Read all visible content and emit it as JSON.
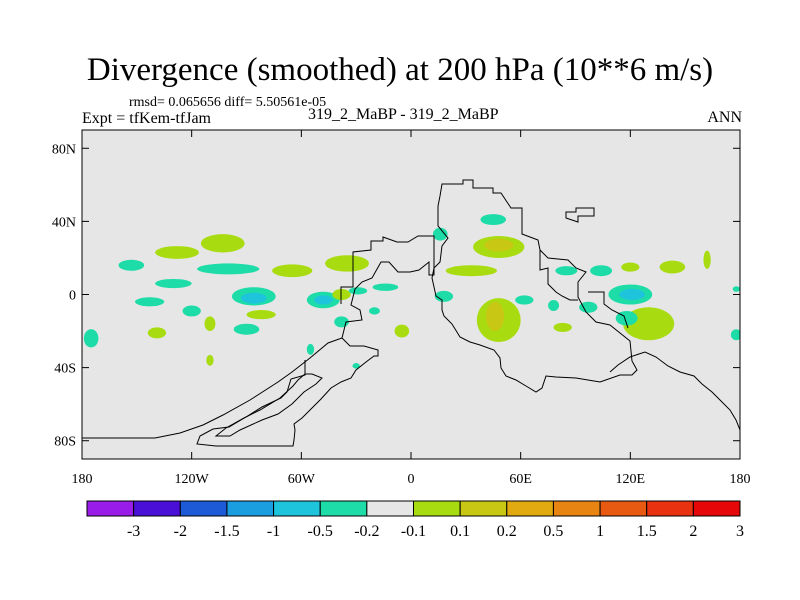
{
  "header": {
    "title": "Divergence (smoothed) at 200 hPa (10**6 m/s)",
    "stats": "rmsd= 0.065656 diff= 5.50561e-05",
    "experiment": "Expt = tfKem-tfJam",
    "cases": "319_2_MaBP - 319_2_MaBP",
    "season": "ANN"
  },
  "chart_data": {
    "type": "heatmap",
    "title": "Divergence (smoothed) at 200 hPa (10**6 m/s)",
    "xlim": [
      -180,
      180
    ],
    "ylim": [
      -90,
      90
    ],
    "x_ticks": [
      {
        "value": -180,
        "label": "180"
      },
      {
        "value": -120,
        "label": "120W"
      },
      {
        "value": -60,
        "label": "60W"
      },
      {
        "value": 0,
        "label": "0"
      },
      {
        "value": 60,
        "label": "60E"
      },
      {
        "value": 120,
        "label": "120E"
      },
      {
        "value": 180,
        "label": "180"
      }
    ],
    "y_ticks": [
      {
        "value": 80,
        "label": "80N"
      },
      {
        "value": 40,
        "label": "40N"
      },
      {
        "value": 0,
        "label": "0"
      },
      {
        "value": -40,
        "label": "40S"
      },
      {
        "value": -80,
        "label": "80S"
      }
    ],
    "colorbar": {
      "labels": [
        "-3",
        "-2",
        "-1.5",
        "-1",
        "-0.5",
        "-0.2",
        "-0.1",
        "0.1",
        "0.2",
        "0.5",
        "1",
        "1.5",
        "2",
        "3"
      ],
      "colors": [
        "#9a1ce8",
        "#4a10d8",
        "#1c5ad8",
        "#1a9ee0",
        "#1ec4dc",
        "#1edca8",
        "#e6e6e6",
        "#a8dc10",
        "#c8c814",
        "#e0aa10",
        "#e88412",
        "#e85a12",
        "#e83210",
        "#e60808"
      ]
    },
    "background_color": "#e6e6e6",
    "grid": false,
    "anomaly_regions": [
      {
        "lon": -143,
        "lat": -4,
        "rx": 8,
        "ry": 2.5,
        "color": "#1edca8"
      },
      {
        "lon": -153,
        "lat": 16,
        "rx": 7,
        "ry": 3,
        "color": "#1edca8"
      },
      {
        "lon": -128,
        "lat": 23,
        "rx": 12,
        "ry": 3.5,
        "color": "#a8dc10"
      },
      {
        "lon": -103,
        "lat": 28,
        "rx": 12,
        "ry": 5,
        "color": "#a8dc10"
      },
      {
        "lon": -100,
        "lat": 14,
        "rx": 17,
        "ry": 3,
        "color": "#1edca8"
      },
      {
        "lon": -65,
        "lat": 13,
        "rx": 11,
        "ry": 3.5,
        "color": "#a8dc10"
      },
      {
        "lon": -130,
        "lat": 6,
        "rx": 10,
        "ry": 2.5,
        "color": "#1edca8"
      },
      {
        "lon": -86,
        "lat": -1,
        "rx": 12,
        "ry": 5,
        "color": "#1edca8"
      },
      {
        "lon": -86,
        "lat": -2,
        "rx": 7,
        "ry": 3,
        "color": "#1ec4dc"
      },
      {
        "lon": -48,
        "lat": -3,
        "rx": 9,
        "ry": 4.5,
        "color": "#1edca8"
      },
      {
        "lon": -48,
        "lat": -3,
        "rx": 5,
        "ry": 2.5,
        "color": "#1ec4dc"
      },
      {
        "lon": -120,
        "lat": -9,
        "rx": 5,
        "ry": 3,
        "color": "#1edca8"
      },
      {
        "lon": -82,
        "lat": -11,
        "rx": 8,
        "ry": 2.5,
        "color": "#a8dc10"
      },
      {
        "lon": -110,
        "lat": -16,
        "rx": 3,
        "ry": 4,
        "color": "#a8dc10"
      },
      {
        "lon": -90,
        "lat": -19,
        "rx": 7,
        "ry": 3,
        "color": "#1edca8"
      },
      {
        "lon": -139,
        "lat": -21,
        "rx": 5,
        "ry": 3,
        "color": "#a8dc10"
      },
      {
        "lon": -175,
        "lat": -24,
        "rx": 4,
        "ry": 5,
        "color": "#1edca8"
      },
      {
        "lon": -110,
        "lat": -36,
        "rx": 2,
        "ry": 3,
        "color": "#a8dc10"
      },
      {
        "lon": -55,
        "lat": -30,
        "rx": 2,
        "ry": 3,
        "color": "#1edca8"
      },
      {
        "lon": -38,
        "lat": -15,
        "rx": 4,
        "ry": 3,
        "color": "#1edca8"
      },
      {
        "lon": -20,
        "lat": -9,
        "rx": 3,
        "ry": 2,
        "color": "#1edca8"
      },
      {
        "lon": -5,
        "lat": -20,
        "rx": 4,
        "ry": 3.5,
        "color": "#a8dc10"
      },
      {
        "lon": -35,
        "lat": 17,
        "rx": 12,
        "ry": 4.5,
        "color": "#a8dc10"
      },
      {
        "lon": -38,
        "lat": 0,
        "rx": 5,
        "ry": 3,
        "color": "#a8dc10"
      },
      {
        "lon": -29,
        "lat": 2,
        "rx": 5,
        "ry": 2,
        "color": "#1edca8"
      },
      {
        "lon": -14,
        "lat": 4,
        "rx": 7,
        "ry": 2,
        "color": "#1edca8"
      },
      {
        "lon": -30,
        "lat": -39,
        "rx": 2,
        "ry": 1.5,
        "color": "#1edca8"
      },
      {
        "lon": 48,
        "lat": 26,
        "rx": 14,
        "ry": 6,
        "color": "#a8dc10"
      },
      {
        "lon": 48,
        "lat": 27,
        "rx": 8,
        "ry": 3.5,
        "color": "#c8c814"
      },
      {
        "lon": 45,
        "lat": 41,
        "rx": 7,
        "ry": 3,
        "color": "#1edca8"
      },
      {
        "lon": 16,
        "lat": 33,
        "rx": 4,
        "ry": 3.5,
        "color": "#1edca8"
      },
      {
        "lon": 33,
        "lat": 13,
        "rx": 14,
        "ry": 3,
        "color": "#a8dc10"
      },
      {
        "lon": 18,
        "lat": -1,
        "rx": 5,
        "ry": 3,
        "color": "#1edca8"
      },
      {
        "lon": 48,
        "lat": -14,
        "rx": 12,
        "ry": 12,
        "color": "#a8dc10"
      },
      {
        "lon": 46,
        "lat": -12,
        "rx": 5,
        "ry": 8,
        "color": "#c8c814"
      },
      {
        "lon": 62,
        "lat": -3,
        "rx": 5,
        "ry": 2.5,
        "color": "#1edca8"
      },
      {
        "lon": 78,
        "lat": -6,
        "rx": 3,
        "ry": 3,
        "color": "#1edca8"
      },
      {
        "lon": 85,
        "lat": 13,
        "rx": 6,
        "ry": 2.5,
        "color": "#1edca8"
      },
      {
        "lon": 104,
        "lat": 13,
        "rx": 6,
        "ry": 3,
        "color": "#1edca8"
      },
      {
        "lon": 83,
        "lat": -18,
        "rx": 5,
        "ry": 2.5,
        "color": "#a8dc10"
      },
      {
        "lon": 120,
        "lat": 0,
        "rx": 12,
        "ry": 5.5,
        "color": "#1edca8"
      },
      {
        "lon": 121,
        "lat": 0,
        "rx": 7,
        "ry": 3,
        "color": "#1ec4dc"
      },
      {
        "lon": 97,
        "lat": -7,
        "rx": 5,
        "ry": 3,
        "color": "#1edca8"
      },
      {
        "lon": 130,
        "lat": -16,
        "rx": 14,
        "ry": 9,
        "color": "#a8dc10"
      },
      {
        "lon": 118,
        "lat": -13,
        "rx": 6,
        "ry": 4,
        "color": "#1edca8"
      },
      {
        "lon": 143,
        "lat": 15,
        "rx": 7,
        "ry": 3.5,
        "color": "#a8dc10"
      },
      {
        "lon": 162,
        "lat": 19,
        "rx": 2,
        "ry": 5,
        "color": "#a8dc10"
      },
      {
        "lon": 120,
        "lat": 15,
        "rx": 5,
        "ry": 2.5,
        "color": "#a8dc10"
      },
      {
        "lon": 178,
        "lat": -22,
        "rx": 3,
        "ry": 3,
        "color": "#1edca8"
      },
      {
        "lon": 178,
        "lat": 3,
        "rx": 2,
        "ry": 1.5,
        "color": "#1edca8"
      }
    ]
  }
}
